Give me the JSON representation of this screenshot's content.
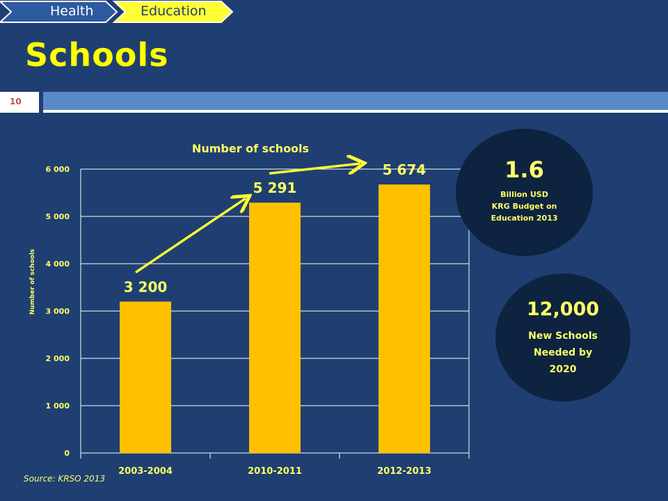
{
  "breadcrumb": {
    "items": [
      "Health",
      "Education"
    ],
    "colors": {
      "health": "#2e5aa0",
      "education": "#ffff33"
    }
  },
  "title": "Schools",
  "slide_number": "10",
  "chart_data": {
    "type": "bar",
    "title": "Number of schools",
    "ylabel": "Number of schools",
    "xlabel": "",
    "categories": [
      "2003-2004",
      "2010-2011",
      "2012-2013"
    ],
    "values": [
      3200,
      5291,
      5674
    ],
    "data_labels": [
      "3 200",
      "5 291",
      "5 674"
    ],
    "yticks": [
      "0",
      "1 000",
      "2 000",
      "3 000",
      "4 000",
      "5 000",
      "6 000"
    ],
    "ylim": [
      0,
      6000
    ],
    "grid": true,
    "legend": "none",
    "bar_color": "#ffc000",
    "text_color": "#ffff66"
  },
  "source": "Source: KRSO 2013",
  "callouts": {
    "budget": {
      "value": "1.6",
      "lines": [
        "Billion USD",
        "KRG Budget on",
        "Education 2013"
      ]
    },
    "schools": {
      "value": "12,000",
      "lines": [
        "New Schools",
        "Needed by",
        "2020"
      ]
    }
  }
}
